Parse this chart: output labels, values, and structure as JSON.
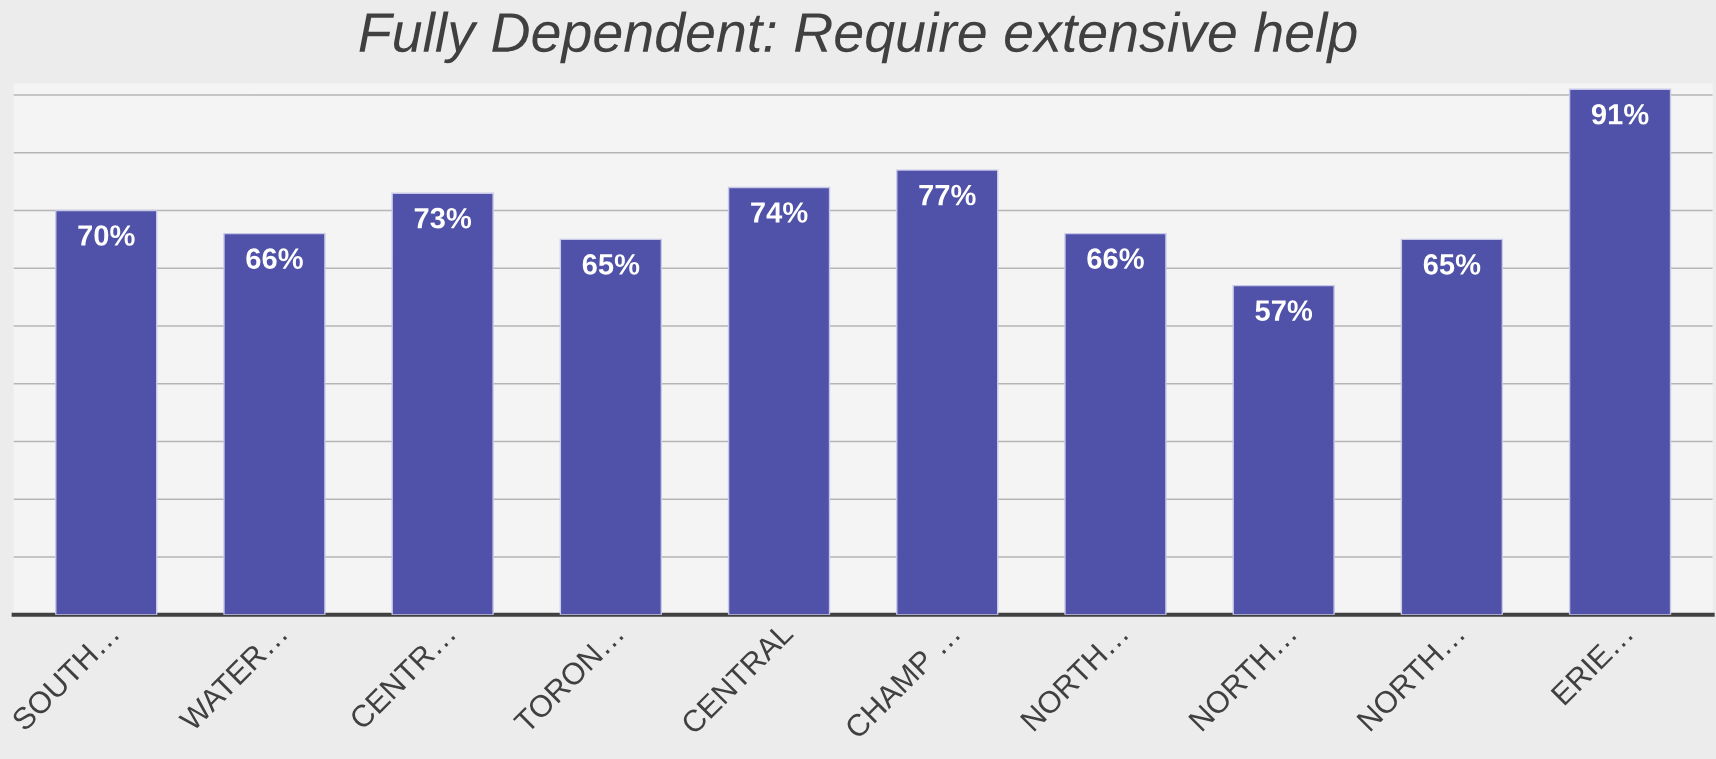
{
  "chart_data": {
    "type": "bar",
    "title": "Fully Dependent: Require extensive help",
    "categories": [
      "SOUTH…",
      "WATER…",
      "CENTR…",
      "TORON…",
      "CENTRAL",
      "CHAMP …",
      "NORTH…",
      "NORTH…",
      "NORTH…",
      "ERIE…"
    ],
    "values": [
      70,
      66,
      73,
      65,
      74,
      77,
      66,
      57,
      65,
      91
    ],
    "value_labels": [
      "70%",
      "66%",
      "73%",
      "65%",
      "74%",
      "77%",
      "66%",
      "57%",
      "65%",
      "91%"
    ],
    "color": "#4f52a8",
    "ylim": [
      0,
      92
    ],
    "yticks": [
      {
        "value": 0,
        "label": null
      },
      {
        "value": 10,
        "label": null
      },
      {
        "value": 20,
        "label": null
      },
      {
        "value": 30,
        "label": null
      },
      {
        "value": 40,
        "label": null
      },
      {
        "value": 50,
        "label": null
      },
      {
        "value": 60,
        "label": null
      },
      {
        "value": 70,
        "label": null
      },
      {
        "value": 80,
        "label": null
      },
      {
        "value": 90,
        "label": null
      }
    ],
    "grid": "y",
    "tick_labels": "x"
  }
}
